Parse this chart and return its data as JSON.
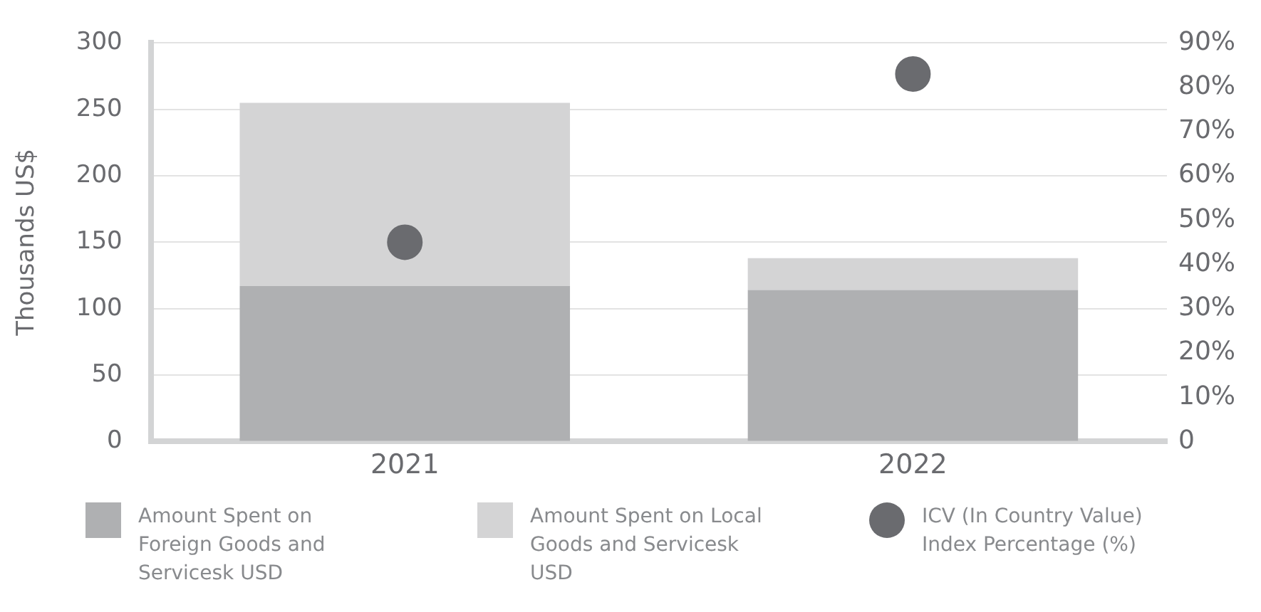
{
  "chart_data": {
    "type": "bar",
    "stacked": true,
    "categories": [
      "2021",
      "2022"
    ],
    "ylabel": "Thousands US$",
    "series": [
      {
        "name": "Amount Spent on Foreign Goods and Servicesk USD",
        "color": "#afb0b2",
        "values": [
          117,
          114
        ]
      },
      {
        "name": "Amount Spent on Local Goods and Servicesk USD",
        "color": "#d4d4d5",
        "values": [
          138,
          24
        ]
      },
      {
        "name": "ICV (In Country Value) Index Percentage (%)",
        "type": "scatter",
        "axis": "y2",
        "marker": "circle",
        "color": "#6a6b6f",
        "values": [
          45,
          83
        ]
      }
    ],
    "ylim": [
      0,
      300
    ],
    "yticks": [
      0,
      50,
      100,
      150,
      200,
      250,
      300
    ],
    "y2lim": [
      0,
      90
    ],
    "y2ticks": [
      {
        "value": 0,
        "label": "0"
      },
      {
        "value": 10,
        "label": "10%"
      },
      {
        "value": 20,
        "label": "20%"
      },
      {
        "value": 30,
        "label": "30%"
      },
      {
        "value": 40,
        "label": "40%"
      },
      {
        "value": 50,
        "label": "50%"
      },
      {
        "value": 60,
        "label": "60%"
      },
      {
        "value": 70,
        "label": "70%"
      },
      {
        "value": 80,
        "label": "80%"
      },
      {
        "value": 90,
        "label": "90%"
      }
    ],
    "grid": "y",
    "legend": "bottom"
  }
}
